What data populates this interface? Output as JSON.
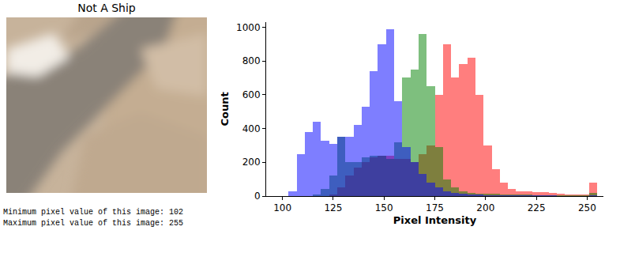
{
  "chart_data": {
    "type": "histogram",
    "x_label": "Pixel Intensity",
    "y_label": "Count",
    "bins": [
      103,
      107,
      111,
      115,
      119,
      123,
      127,
      131,
      135,
      139,
      143,
      147,
      151,
      155,
      159,
      163,
      167,
      171,
      175,
      179,
      183,
      187,
      191,
      195,
      199,
      203,
      207,
      211,
      215,
      219,
      223,
      227,
      231,
      235,
      239,
      243,
      247,
      251,
      255
    ],
    "series": [
      {
        "color": "red",
        "values": [
          0,
          0,
          0,
          0,
          0,
          10,
          50,
          120,
          170,
          200,
          230,
          240,
          240,
          220,
          220,
          200,
          250,
          300,
          600,
          900,
          700,
          780,
          820,
          600,
          300,
          160,
          80,
          40,
          30,
          30,
          25,
          25,
          20,
          15,
          10,
          10,
          10,
          80
        ]
      },
      {
        "color": "green",
        "values": [
          0,
          0,
          0,
          10,
          40,
          120,
          350,
          200,
          200,
          230,
          240,
          240,
          220,
          320,
          700,
          750,
          960,
          650,
          290,
          100,
          50,
          30,
          20,
          15,
          12,
          12,
          10,
          10,
          8,
          8,
          6,
          6,
          5,
          5,
          4,
          4,
          3,
          20
        ]
      },
      {
        "color": "blue",
        "values": [
          30,
          250,
          380,
          440,
          330,
          310,
          350,
          350,
          420,
          530,
          740,
          900,
          990,
          560,
          290,
          200,
          130,
          80,
          50,
          30,
          20,
          15,
          10,
          8,
          6,
          5,
          5,
          4,
          4,
          3,
          3,
          3,
          3,
          2,
          2,
          2,
          2,
          5
        ]
      }
    ],
    "xlim": [
      92,
      258
    ],
    "xticks": [
      100,
      125,
      150,
      175,
      200,
      225,
      250
    ],
    "ylim": [
      0,
      1030
    ],
    "yticks": [
      0,
      200,
      400,
      600,
      800,
      1000
    ],
    "grid": false
  },
  "image": {
    "title": "Not A Ship"
  },
  "notes": [
    "Minimum pixel value of this image: 102",
    "Maximum pixel value of this image: 255"
  ]
}
